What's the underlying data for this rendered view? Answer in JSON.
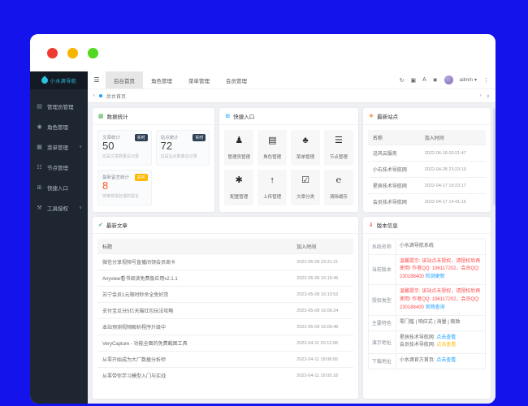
{
  "colors": {
    "desktop_blue": "#1513ec",
    "accent_blue": "#1e9fff",
    "warn_red": "#ff4d4f",
    "badge_dark": "#2f4056",
    "badge_orange": "#ffb800",
    "brand_cyan": "#2fc1de"
  },
  "logo": {
    "name": "小水滴导航"
  },
  "sidebar": {
    "items": [
      {
        "icon": "▤",
        "label": "管理员管理",
        "arrow": ""
      },
      {
        "icon": "◉",
        "label": "角色管理",
        "arrow": ""
      },
      {
        "icon": "▦",
        "label": "菜单管理",
        "arrow": "∨"
      },
      {
        "icon": "☷",
        "label": "节点管理",
        "arrow": ""
      },
      {
        "icon": "⊞",
        "label": "快捷入口",
        "arrow": ""
      },
      {
        "icon": "⚒",
        "label": "工具授权",
        "arrow": "∨"
      }
    ]
  },
  "navbar": {
    "menu_icon": "☰",
    "tabs": [
      {
        "label": "后台首页"
      },
      {
        "label": "角色管理"
      },
      {
        "label": "菜单管理"
      },
      {
        "label": "会员管理"
      }
    ],
    "icons": {
      "refresh": "↻",
      "clear": "▣",
      "font": "A",
      "close": "✖"
    },
    "user": {
      "name": "admin",
      "caret": "▾",
      "more": "⋮"
    }
  },
  "breadcrumb": {
    "back": "‹",
    "label": "后台首页",
    "forward": "›",
    "collapse": "∨"
  },
  "stats": {
    "title": "数据统计",
    "icon": "▦",
    "cards": [
      {
        "label": "文章统计",
        "value": "50",
        "badge": "实时",
        "caption": "这是文章数量总记录"
      },
      {
        "label": "站点统计",
        "value": "72",
        "badge": "实时",
        "caption": "这是站点数量总记录"
      },
      {
        "label": "最新留言统计",
        "value": "8",
        "badge": "实时",
        "caption": "待审核需处理的留言"
      }
    ]
  },
  "quick": {
    "title": "快捷入口",
    "icon": "⊞",
    "items": [
      {
        "icon": "♟",
        "label": "管理员管理"
      },
      {
        "icon": "▤",
        "label": "角色管理"
      },
      {
        "icon": "♣",
        "label": "菜单管理"
      },
      {
        "icon": "☰",
        "label": "节点管理"
      },
      {
        "icon": "✱",
        "label": "配置管理"
      },
      {
        "icon": "↑",
        "label": "上传管理"
      },
      {
        "icon": "☑",
        "label": "文章分类"
      },
      {
        "icon": "℮",
        "label": "清除缓存"
      }
    ]
  },
  "sites": {
    "title": "最新站点",
    "icon": "❖",
    "headers": [
      "名称",
      "加入时间"
    ],
    "rows": [
      {
        "name": "迅风云服务",
        "time": "2022-06-18 03:21:47"
      },
      {
        "name": "小右技术导航网",
        "time": "2022-04-28 23:23:10"
      },
      {
        "name": "星辰技术导航网",
        "time": "2022-04-17 19:23:17"
      },
      {
        "name": "会员技术导航网",
        "time": "2022-04-17 14:41:15"
      }
    ]
  },
  "articles": {
    "title": "最新文章",
    "icon": "✔",
    "headers": [
      "标题",
      "加入时间"
    ],
    "rows": [
      {
        "name": "微信分享视频号直播间领会员周卡",
        "time": "2022-05-09 23:31:21"
      },
      {
        "name": "Anyview看书阅读免费版应用v2.1.1",
        "time": "2022-05-09 16:16:45"
      },
      {
        "name": "苏宁会员1元限时秒杀全免好货",
        "time": "2022-05-09 16:13:52"
      },
      {
        "name": "支付宝瓜分5亿天猫红包玩法攻略",
        "time": "2022-05-09 16:06:24"
      },
      {
        "name": "本站预测视频解析程序升级中",
        "time": "2022-05-09 16:06:46"
      },
      {
        "name": "VeryCapture - 功能全面的免费截图工具",
        "time": "2022-04-11 20:12:08"
      },
      {
        "name": "从零开始成为大厂数据分析师",
        "time": "2022-04-11 18:08:05"
      },
      {
        "name": "从零带你学习模型入门与实战",
        "time": "2022-04-11 16:05:18"
      }
    ]
  },
  "version": {
    "title": "版本信息",
    "icon": "⇓",
    "sys_label": "系统名称",
    "sys_value": "小水滴导航系统",
    "ver_label": "当前版本",
    "warn": "温馨提示: 该站点未授权，请授权后再使用! 作者QQ: 196117202，会员QQ: 230188400",
    "ver_link": "检测更新",
    "auth_label": "授权类型",
    "auth_link": "官网查询",
    "feat_label": "主要特色",
    "feat_value": "零门槛 | 响应式 | 海量 | 极致",
    "demo_label": "演示地址",
    "demo1": "星辰技术导航网:",
    "demo1_link": "点击查看",
    "demo2": "会员技术导航网:",
    "demo2_link": "点击查看",
    "down_label": "下载地址",
    "down_text": "小水滴官方首页:",
    "down_link": "点击查看"
  }
}
